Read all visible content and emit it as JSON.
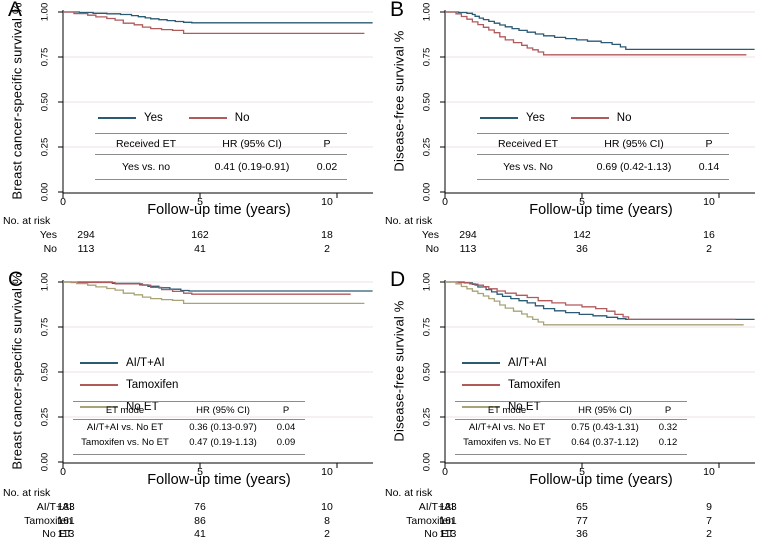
{
  "figure": {
    "x_tick_labels": [
      "0",
      "5",
      "10"
    ],
    "y_tick_labels": [
      "0.00",
      "0.25",
      "0.50",
      "0.75",
      "1.00"
    ]
  },
  "colors": {
    "blue": "#2b5a74",
    "red": "#b15a5c",
    "olive": "#a8a478",
    "grid": "#ede2e0",
    "axis": "#000000",
    "table_border": "#8c8c8c"
  },
  "chart_data": [
    {
      "type": "line",
      "panel": "A",
      "ylabel": "Breast cancer-specific survival %",
      "xlabel": "Follow-up time (years)",
      "xlim": [
        0,
        11.4
      ],
      "ylim": [
        0,
        1
      ],
      "xticks": [
        0,
        5,
        10
      ],
      "yticks": [
        0,
        0.25,
        0.5,
        0.75,
        1
      ],
      "step": true,
      "series": [
        {
          "name": "Yes",
          "color": "#2b5a74",
          "points": [
            [
              0,
              1
            ],
            [
              0.6,
              0.997
            ],
            [
              1.1,
              0.993
            ],
            [
              1.6,
              0.99
            ],
            [
              2.1,
              0.986
            ],
            [
              2.5,
              0.98
            ],
            [
              2.75,
              0.974
            ],
            [
              3,
              0.967
            ],
            [
              3.2,
              0.962
            ],
            [
              3.5,
              0.957
            ],
            [
              3.8,
              0.952
            ],
            [
              4.1,
              0.947
            ],
            [
              4.4,
              0.943
            ],
            [
              4.7,
              0.94
            ],
            [
              11.3,
              0.94
            ]
          ]
        },
        {
          "name": "No",
          "color": "#b15a5c",
          "points": [
            [
              0,
              1
            ],
            [
              0.4,
              0.991
            ],
            [
              0.9,
              0.982
            ],
            [
              1.2,
              0.973
            ],
            [
              1.6,
              0.964
            ],
            [
              1.9,
              0.955
            ],
            [
              2.2,
              0.938
            ],
            [
              2.6,
              0.929
            ],
            [
              2.9,
              0.916
            ],
            [
              3.2,
              0.908
            ],
            [
              3.6,
              0.902
            ],
            [
              4,
              0.898
            ],
            [
              4.4,
              0.881
            ],
            [
              11,
              0.881
            ]
          ]
        }
      ],
      "hr_table": {
        "headers": [
          "Received ET",
          "HR (95% CI)",
          "P"
        ],
        "rows": [
          [
            "Yes vs. no",
            "0.41 (0.19-0.91)",
            "0.02"
          ]
        ]
      },
      "risk_table": {
        "label": "No. at risk",
        "rows": [
          {
            "name": "Yes",
            "values": [
              "294",
              "162",
              "18"
            ]
          },
          {
            "name": "No",
            "values": [
              "113",
              "41",
              "2"
            ]
          }
        ]
      }
    },
    {
      "type": "line",
      "panel": "B",
      "ylabel": "Disease-free survival  %",
      "xlabel": "Follow-up time (years)",
      "xlim": [
        0,
        11.4
      ],
      "ylim": [
        0,
        1
      ],
      "xticks": [
        0,
        5,
        10
      ],
      "yticks": [
        0,
        0.25,
        0.5,
        0.75,
        1
      ],
      "step": true,
      "series": [
        {
          "name": "Yes",
          "color": "#2b5a74",
          "points": [
            [
              0,
              1
            ],
            [
              0.5,
              0.997
            ],
            [
              0.8,
              0.993
            ],
            [
              1,
              0.986
            ],
            [
              1.1,
              0.976
            ],
            [
              1.25,
              0.966
            ],
            [
              1.4,
              0.958
            ],
            [
              1.6,
              0.948
            ],
            [
              1.8,
              0.938
            ],
            [
              2,
              0.928
            ],
            [
              2.2,
              0.918
            ],
            [
              2.45,
              0.908
            ],
            [
              2.7,
              0.898
            ],
            [
              3,
              0.888
            ],
            [
              3.3,
              0.878
            ],
            [
              3.6,
              0.868
            ],
            [
              4,
              0.859
            ],
            [
              4.4,
              0.852
            ],
            [
              4.8,
              0.845
            ],
            [
              5.2,
              0.838
            ],
            [
              5.7,
              0.83
            ],
            [
              6.1,
              0.82
            ],
            [
              6.4,
              0.806
            ],
            [
              6.6,
              0.792
            ],
            [
              11.3,
              0.792
            ]
          ]
        },
        {
          "name": "No",
          "color": "#b15a5c",
          "points": [
            [
              0,
              1
            ],
            [
              0.4,
              0.99
            ],
            [
              0.6,
              0.975
            ],
            [
              0.8,
              0.96
            ],
            [
              1,
              0.945
            ],
            [
              1.2,
              0.93
            ],
            [
              1.4,
              0.915
            ],
            [
              1.6,
              0.9
            ],
            [
              1.8,
              0.885
            ],
            [
              2,
              0.862
            ],
            [
              2.2,
              0.845
            ],
            [
              2.5,
              0.83
            ],
            [
              2.8,
              0.815
            ],
            [
              3,
              0.8
            ],
            [
              3.2,
              0.79
            ],
            [
              3.4,
              0.778
            ],
            [
              3.6,
              0.762
            ],
            [
              11,
              0.762
            ]
          ]
        }
      ],
      "hr_table": {
        "headers": [
          "Received ET",
          "HR (95% CI)",
          "P"
        ],
        "rows": [
          [
            "Yes vs. No",
            "0.69 (0.42-1.13)",
            "0.14"
          ]
        ]
      },
      "risk_table": {
        "label": "No. at risk",
        "rows": [
          {
            "name": "Yes",
            "values": [
              "294",
              "142",
              "16"
            ]
          },
          {
            "name": "No",
            "values": [
              "113",
              "36",
              "2"
            ]
          }
        ]
      }
    },
    {
      "type": "line",
      "panel": "C",
      "ylabel": "Breast cancer-specific survival %",
      "xlabel": "Follow-up time (years)",
      "xlim": [
        0,
        11.4
      ],
      "ylim": [
        0,
        1
      ],
      "xticks": [
        0,
        5,
        10
      ],
      "yticks": [
        0,
        0.25,
        0.5,
        0.75,
        1
      ],
      "step": true,
      "series": [
        {
          "name": "AI/T+AI",
          "color": "#2b5a74",
          "points": [
            [
              0,
              1
            ],
            [
              1.8,
              0.992
            ],
            [
              2.8,
              0.984
            ],
            [
              3.1,
              0.976
            ],
            [
              3.5,
              0.968
            ],
            [
              3.9,
              0.96
            ],
            [
              4.3,
              0.953
            ],
            [
              4.6,
              0.95
            ],
            [
              11.3,
              0.95
            ]
          ]
        },
        {
          "name": "Tamoxifen",
          "color": "#b15a5c",
          "points": [
            [
              0,
              1
            ],
            [
              0.3,
              0.997
            ],
            [
              1.9,
              0.99
            ],
            [
              2.9,
              0.982
            ],
            [
              3.2,
              0.97
            ],
            [
              3.6,
              0.958
            ],
            [
              4,
              0.948
            ],
            [
              4.4,
              0.938
            ],
            [
              4.7,
              0.932
            ],
            [
              10.5,
              0.932
            ]
          ]
        },
        {
          "name": "No ET",
          "color": "#a8a478",
          "points": [
            [
              0,
              1
            ],
            [
              0.5,
              0.991
            ],
            [
              0.9,
              0.982
            ],
            [
              1.2,
              0.973
            ],
            [
              1.6,
              0.964
            ],
            [
              1.9,
              0.955
            ],
            [
              2.2,
              0.938
            ],
            [
              2.6,
              0.929
            ],
            [
              2.9,
              0.916
            ],
            [
              3.2,
              0.908
            ],
            [
              3.6,
              0.902
            ],
            [
              4,
              0.898
            ],
            [
              4.4,
              0.881
            ],
            [
              11,
              0.881
            ]
          ]
        }
      ],
      "hr_table": {
        "headers": [
          "ET mode",
          "HR (95% CI)",
          "P"
        ],
        "rows": [
          [
            "AI/T+AI vs. No ET",
            "0.36 (0.13-0.97)",
            "0.04"
          ],
          [
            "Tamoxifen vs. No ET",
            "0.47 (0.19-1.13)",
            "0.09"
          ]
        ]
      },
      "risk_table": {
        "label": "No. at risk",
        "rows": [
          {
            "name": "AI/T+AI",
            "values": [
              "133",
              "76",
              "10"
            ]
          },
          {
            "name": "Tamoxifen",
            "values": [
              "161",
              "86",
              "8"
            ]
          },
          {
            "name": "No ET",
            "values": [
              "113",
              "41",
              "2"
            ]
          }
        ]
      }
    },
    {
      "type": "line",
      "panel": "D",
      "ylabel": "Disease-free survival %",
      "xlabel": "Follow-up time (years)",
      "xlim": [
        0,
        11.4
      ],
      "ylim": [
        0,
        1
      ],
      "xticks": [
        0,
        5,
        10
      ],
      "yticks": [
        0,
        0.25,
        0.5,
        0.75,
        1
      ],
      "step": true,
      "series": [
        {
          "name": "AI/T+AI",
          "color": "#2b5a74",
          "points": [
            [
              0,
              1
            ],
            [
              0.7,
              0.995
            ],
            [
              1,
              0.987
            ],
            [
              1.2,
              0.972
            ],
            [
              1.5,
              0.958
            ],
            [
              1.7,
              0.945
            ],
            [
              1.9,
              0.932
            ],
            [
              2.1,
              0.92
            ],
            [
              2.4,
              0.908
            ],
            [
              2.7,
              0.896
            ],
            [
              3,
              0.884
            ],
            [
              3.3,
              0.868
            ],
            [
              3.6,
              0.852
            ],
            [
              4,
              0.84
            ],
            [
              4.4,
              0.83
            ],
            [
              4.9,
              0.82
            ],
            [
              5.4,
              0.812
            ],
            [
              5.9,
              0.804
            ],
            [
              6.3,
              0.796
            ],
            [
              6.6,
              0.792
            ],
            [
              11.3,
              0.792
            ]
          ]
        },
        {
          "name": "Tamoxifen",
          "color": "#b15a5c",
          "points": [
            [
              0,
              1
            ],
            [
              0.5,
              0.997
            ],
            [
              0.9,
              0.99
            ],
            [
              1.1,
              0.982
            ],
            [
              1.4,
              0.974
            ],
            [
              1.6,
              0.962
            ],
            [
              1.9,
              0.95
            ],
            [
              2.2,
              0.938
            ],
            [
              2.6,
              0.926
            ],
            [
              3,
              0.914
            ],
            [
              3.4,
              0.896
            ],
            [
              3.9,
              0.884
            ],
            [
              4.4,
              0.872
            ],
            [
              5,
              0.862
            ],
            [
              5.5,
              0.852
            ],
            [
              5.9,
              0.838
            ],
            [
              6.2,
              0.82
            ],
            [
              6.5,
              0.806
            ],
            [
              6.7,
              0.792
            ],
            [
              10.6,
              0.792
            ]
          ]
        },
        {
          "name": "No ET",
          "color": "#a8a478",
          "points": [
            [
              0,
              1
            ],
            [
              0.4,
              0.99
            ],
            [
              0.6,
              0.975
            ],
            [
              0.8,
              0.962
            ],
            [
              1,
              0.949
            ],
            [
              1.2,
              0.936
            ],
            [
              1.4,
              0.922
            ],
            [
              1.6,
              0.908
            ],
            [
              1.8,
              0.894
            ],
            [
              2,
              0.872
            ],
            [
              2.2,
              0.855
            ],
            [
              2.5,
              0.838
            ],
            [
              2.8,
              0.822
            ],
            [
              3,
              0.806
            ],
            [
              3.2,
              0.792
            ],
            [
              3.4,
              0.778
            ],
            [
              3.6,
              0.762
            ],
            [
              10.9,
              0.762
            ]
          ]
        }
      ],
      "hr_table": {
        "headers": [
          "ET mode",
          "HR (95% CI)",
          "P"
        ],
        "rows": [
          [
            "AI/T+AI vs. No ET",
            "0.75 (0.43-1.31)",
            "0.32"
          ],
          [
            "Tamoxifen vs. No ET",
            "0.64 (0.37-1.12)",
            "0.12"
          ]
        ]
      },
      "risk_table": {
        "label": "No. at risk",
        "rows": [
          {
            "name": "AI/T+AI",
            "values": [
              "133",
              "65",
              "9"
            ]
          },
          {
            "name": "Tamoxifen",
            "values": [
              "161",
              "77",
              "7"
            ]
          },
          {
            "name": "No ET",
            "values": [
              "113",
              "36",
              "2"
            ]
          }
        ]
      }
    }
  ]
}
